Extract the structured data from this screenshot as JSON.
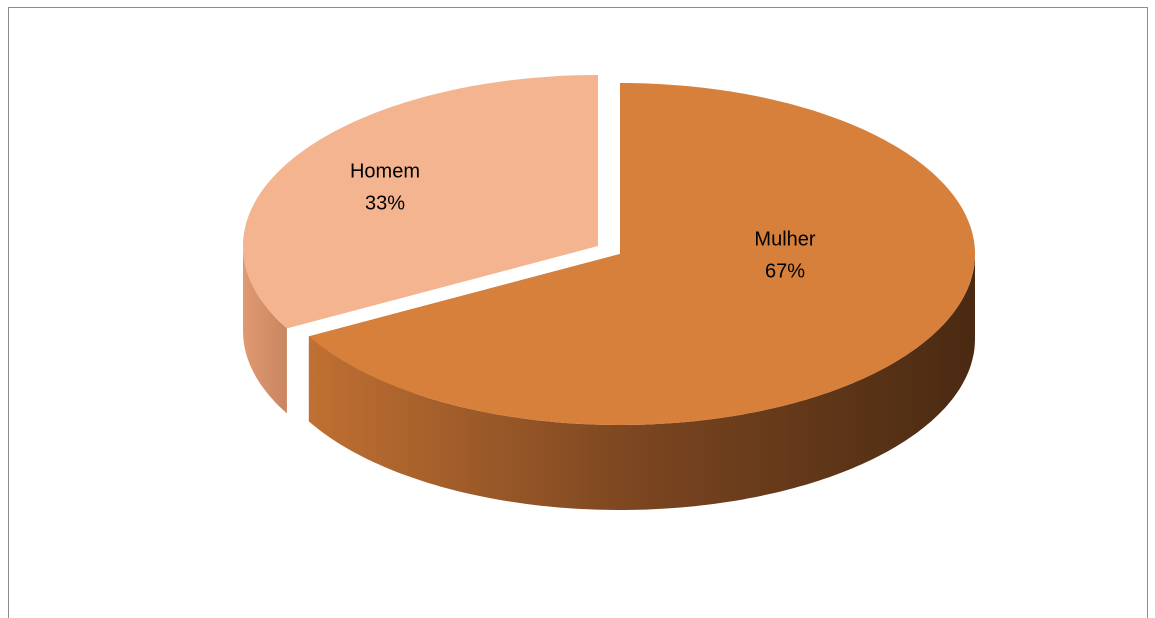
{
  "chart_data": {
    "type": "pie3d",
    "categories": [
      "Mulher",
      "Homem"
    ],
    "values": [
      67,
      33
    ],
    "value_labels": [
      "67%",
      "33%"
    ],
    "colors": [
      "#d6803c",
      "#f3b48f"
    ]
  }
}
